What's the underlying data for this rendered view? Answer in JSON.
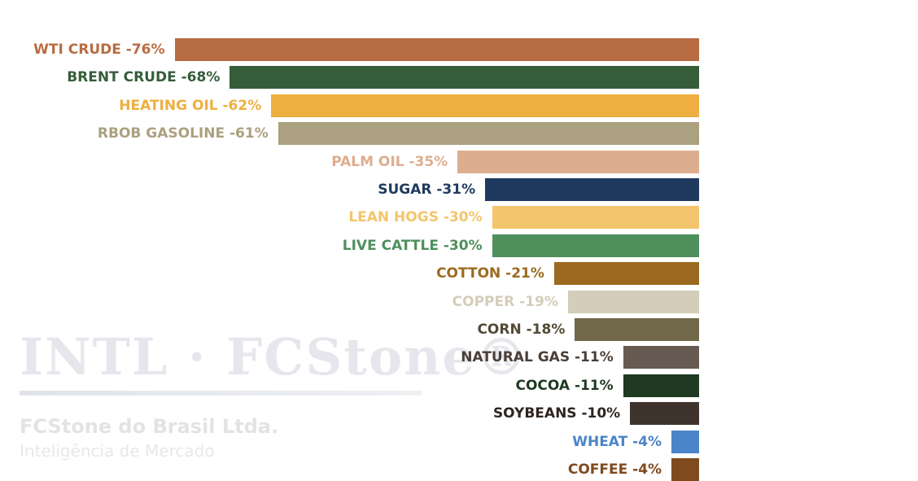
{
  "chart_data": {
    "type": "bar",
    "orientation": "horizontal",
    "title": "",
    "xlabel": "",
    "ylabel": "",
    "xlim": [
      -80,
      0
    ],
    "grid": false,
    "categories": [
      "WTI CRUDE",
      "BRENT CRUDE",
      "HEATING OIL",
      "RBOB GASOLINE",
      "PALM OIL",
      "SUGAR",
      "LEAN HOGS",
      "LIVE CATTLE",
      "COTTON",
      "COPPER",
      "CORN",
      "NATURAL GAS",
      "COCOA",
      "SOYBEANS",
      "WHEAT",
      "COFFEE"
    ],
    "values": [
      -76,
      -68,
      -62,
      -61,
      -35,
      -31,
      -30,
      -30,
      -21,
      -19,
      -18,
      -11,
      -11,
      -10,
      -4,
      -4
    ],
    "labels": [
      "WTI CRUDE -76%",
      "BRENT CRUDE -68%",
      "HEATING OIL -62%",
      "RBOB GASOLINE -61%",
      "PALM OIL -35%",
      "SUGAR -31%",
      "LEAN HOGS -30%",
      "LIVE CATTLE -30%",
      "COTTON -21%",
      "COPPER -19%",
      "CORN -18%",
      "NATURAL GAS -11%",
      "COCOA -11%",
      "SOYBEANS -10%",
      "WHEAT -4%",
      "COFFEE -4%"
    ],
    "colors": [
      "#b86c42",
      "#355d3a",
      "#eeaf40",
      "#aba07f",
      "#ddad8f",
      "#1f3a5e",
      "#f3c56c",
      "#4e8f5c",
      "#9b6a20",
      "#d3cdb9",
      "#716849",
      "#675a52",
      "#1f3922",
      "#3f342d",
      "#4b84c8",
      "#7f4a1e"
    ],
    "label_colors": [
      "#b86c42",
      "#355d3a",
      "#eeaf40",
      "#aba07f",
      "#ddad8f",
      "#1f3a5e",
      "#f3c56c",
      "#4e8f5c",
      "#9b6a20",
      "#d3cdb9",
      "#514a35",
      "#4a4038",
      "#1f3922",
      "#2e2520",
      "#4b84c8",
      "#7f4a1e"
    ]
  },
  "watermark": {
    "logo_text": "INTL · FCStone®",
    "company": "FCStone do Brasil Ltda.",
    "subtitle": "Inteligência de Mercado"
  }
}
